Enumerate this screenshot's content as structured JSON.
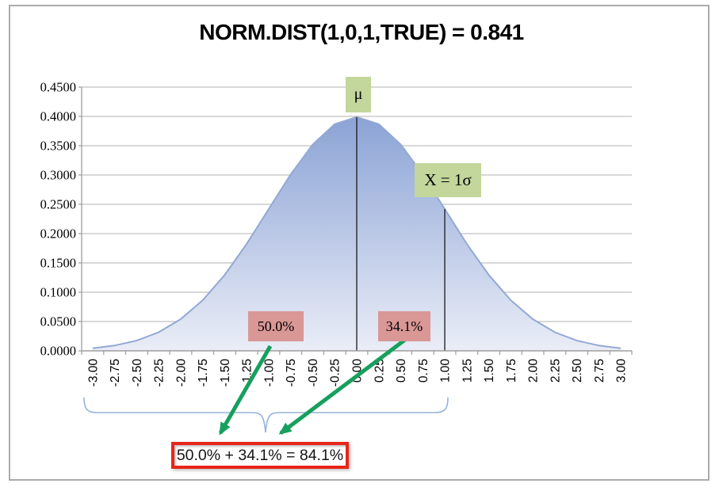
{
  "title": "NORM.DIST(1,0,1,TRUE) = 0.841",
  "chart_data": {
    "type": "area",
    "title": "NORM.DIST(1,0,1,TRUE) = 0.841",
    "x": [
      -3.0,
      -2.75,
      -2.5,
      -2.25,
      -2.0,
      -1.75,
      -1.5,
      -1.25,
      -1.0,
      -0.75,
      -0.5,
      -0.25,
      0.0,
      0.25,
      0.5,
      0.75,
      1.0,
      1.25,
      1.5,
      1.75,
      2.0,
      2.25,
      2.5,
      2.75,
      3.0
    ],
    "values": [
      0.0044,
      0.0091,
      0.0175,
      0.0317,
      0.054,
      0.0863,
      0.1295,
      0.1826,
      0.242,
      0.3011,
      0.3521,
      0.3867,
      0.3989,
      0.3867,
      0.3521,
      0.3011,
      0.242,
      0.1826,
      0.1295,
      0.0863,
      0.054,
      0.0317,
      0.0175,
      0.0091,
      0.0044
    ],
    "x_tick_labels": [
      "-3.00",
      "-2.75",
      "-2.50",
      "-2.25",
      "-2.00",
      "-1.75",
      "-1.50",
      "-1.25",
      "-1.00",
      "-0.75",
      "-0.50",
      "-0.25",
      "0.00",
      "0.25",
      "0.50",
      "0.75",
      "1.00",
      "1.25",
      "1.50",
      "1.75",
      "2.00",
      "2.25",
      "2.50",
      "2.75",
      "3.00"
    ],
    "y_tick_labels": [
      "0.4500",
      "0.4000",
      "0.3500",
      "0.3000",
      "0.2500",
      "0.2000",
      "0.1500",
      "0.1000",
      "0.0500",
      "0.0000"
    ],
    "ylim": [
      0,
      0.45
    ],
    "xlim": [
      -3,
      3
    ],
    "grid": "horizontal",
    "legend": "none",
    "markers": [
      {
        "x": 0.0,
        "value": 0.3989,
        "label": "μ"
      },
      {
        "x": 1.0,
        "value": 0.242,
        "label": "X = 1σ"
      }
    ]
  },
  "annotations": {
    "mu_label": "μ",
    "sigma_label": "X = 1σ",
    "area_left_label": "50.0%",
    "area_right_label": "34.1%",
    "sum_label": "50.0% + 34.1% = 84.1%"
  },
  "colors": {
    "area_top": "#8ba3d5",
    "area_bottom": "#eaedf7",
    "area_edge": "#93a8d4",
    "green_label_bg": "#c3d69b",
    "pink_label_bg": "#d99795",
    "arrow_green": "#16a05d",
    "red_box_border": "#e8251a",
    "brace_blue": "#95b3d7",
    "gridline": "#c0c0c0",
    "axis": "#9d9d9d",
    "marker_line": "#1a1a1a"
  }
}
